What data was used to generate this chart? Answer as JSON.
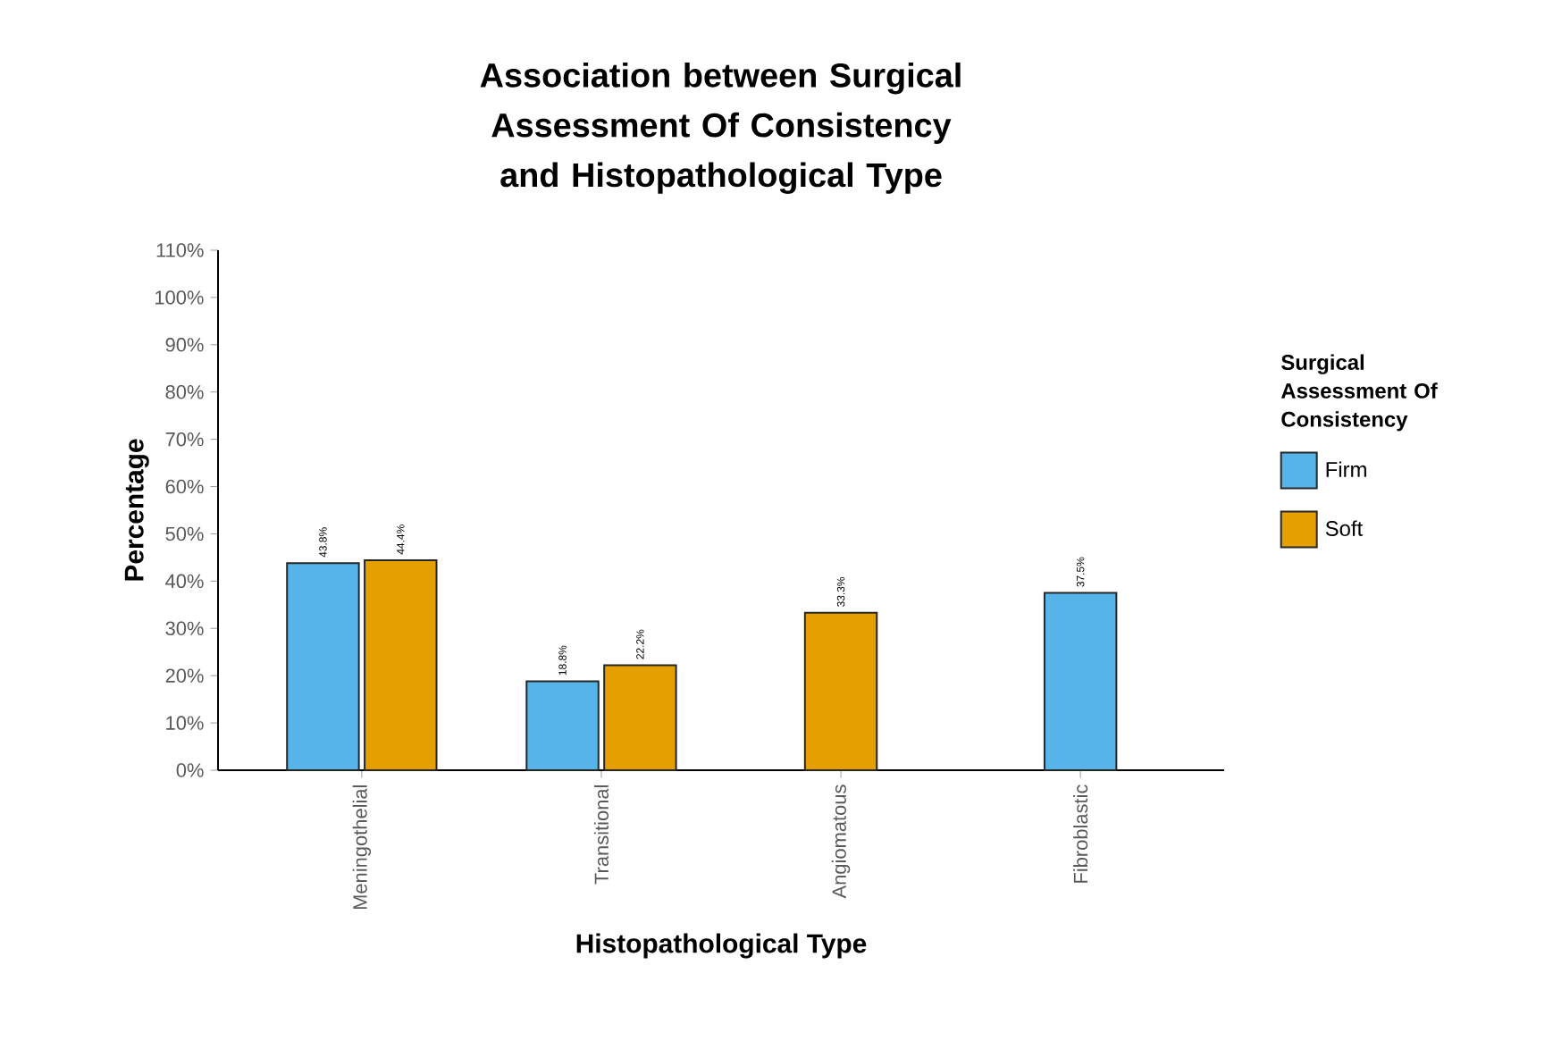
{
  "chart_data": {
    "type": "bar",
    "title": "Association between Surgical Assessment Of Consistency and Histopathological Type",
    "xlabel": "Histopathological Type",
    "ylabel": "Percentage",
    "legend_title": "Surgical Assessment Of Consistency",
    "categories": [
      "Meningothelial",
      "Transitional",
      "Angiomatous",
      "Fibroblastic"
    ],
    "series": [
      {
        "name": "Firm",
        "color": "#56b4e9",
        "values": [
          43.8,
          18.8,
          null,
          37.5
        ],
        "value_labels": [
          "43.8%",
          "18.8%",
          null,
          "37.5%"
        ]
      },
      {
        "name": "Soft",
        "color": "#e69f00",
        "values": [
          44.4,
          22.2,
          33.3,
          null
        ],
        "value_labels": [
          "44.4%",
          "22.2%",
          "33.3%",
          null
        ]
      }
    ],
    "ylim": [
      0,
      110
    ],
    "yticks": [
      {
        "value": 0,
        "label": "0%"
      },
      {
        "value": 10,
        "label": "10%"
      },
      {
        "value": 20,
        "label": "20%"
      },
      {
        "value": 30,
        "label": "30%"
      },
      {
        "value": 40,
        "label": "40%"
      },
      {
        "value": 50,
        "label": "50%"
      },
      {
        "value": 60,
        "label": "60%"
      },
      {
        "value": 70,
        "label": "70%"
      },
      {
        "value": 80,
        "label": "80%"
      },
      {
        "value": 90,
        "label": "90%"
      },
      {
        "value": 100,
        "label": "100%"
      },
      {
        "value": 110,
        "label": "110%"
      }
    ],
    "grid": false,
    "legend": "right"
  }
}
